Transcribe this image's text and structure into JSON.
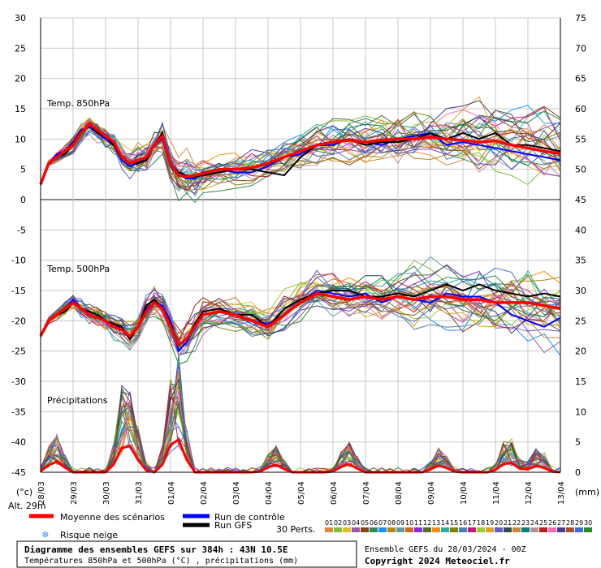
{
  "colors": {
    "mean": "#ff0000",
    "control": "#0000ff",
    "gfs": "#000000",
    "grid": "#c8c8c8",
    "zero_line": "#888888",
    "snow": "#3399ff"
  },
  "labels": {
    "temp850": "Temp. 850hPa",
    "temp500": "Temp. 500hPa",
    "precip": "Précipitations",
    "unit_c": "(°c)",
    "unit_mm": "(mm)",
    "alt": "Alt. 29m"
  },
  "legend": {
    "mean": "Moyenne des scénarios",
    "control": "Run de contrôle",
    "gfs": "Run GFS",
    "snow": "Risque neige",
    "perts": "30 Perts.",
    "pert_numbers": [
      "01",
      "02",
      "03",
      "04",
      "05",
      "06",
      "07",
      "08",
      "09",
      "10",
      "11",
      "12",
      "13",
      "14",
      "15",
      "16",
      "17",
      "18",
      "19",
      "20",
      "21",
      "22",
      "23",
      "24",
      "25",
      "26",
      "27",
      "28",
      "29",
      "30"
    ],
    "pert_colors": [
      "#d98c3c",
      "#7fbf3f",
      "#e0c020",
      "#9b59b6",
      "#8b4513",
      "#2e8b57",
      "#1e90ff",
      "#b8860b",
      "#5f9ea0",
      "#d2691e",
      "#8a2be2",
      "#556b2f",
      "#ff8c00",
      "#20b2aa",
      "#808000",
      "#4682b4",
      "#c71585",
      "#9acd32",
      "#daa520",
      "#6a5acd",
      "#2f4f4f",
      "#cd853f",
      "#008080",
      "#bc8f8f",
      "#b22222",
      "#ff69b4",
      "#483d8b",
      "#a0522d",
      "#4169e1",
      "#228b22"
    ]
  },
  "footer": {
    "title": "Diagramme des ensembles GEFS sur 384h : 43N 10.5E",
    "subtitle": "Températures 850hPa et 500hPa (°C) , précipitations (mm)",
    "run": "Ensemble GEFS du 28/03/2024 - 00Z",
    "copyright": "Copyright 2024 Meteociel.fr"
  },
  "chart_data": {
    "type": "line",
    "x_dates": [
      "28/03",
      "29/03",
      "30/03",
      "31/03",
      "01/04",
      "02/04",
      "03/04",
      "04/04",
      "05/04",
      "06/04",
      "07/04",
      "08/04",
      "09/04",
      "10/04",
      "11/04",
      "12/04",
      "13/04"
    ],
    "x_range_days": [
      0,
      16
    ],
    "y_left_ticks": [
      30,
      25,
      20,
      15,
      10,
      5,
      0,
      -5,
      -10,
      -15,
      -20,
      -25,
      -30,
      -35,
      -40,
      -45
    ],
    "y_right_ticks": [
      75,
      70,
      65,
      60,
      55,
      50,
      45,
      40,
      35,
      30,
      25,
      20,
      15,
      10,
      5,
      0
    ],
    "y_left_range": [
      -45,
      30
    ],
    "temp850": {
      "mean_x": [
        0,
        0.25,
        0.5,
        0.75,
        1,
        1.25,
        1.5,
        1.75,
        2,
        2.25,
        2.5,
        2.75,
        3,
        3.25,
        3.5,
        3.75,
        4,
        4.25,
        4.5,
        4.75,
        5,
        5.5,
        6,
        6.5,
        7,
        7.5,
        8,
        8.5,
        9,
        9.5,
        10,
        10.5,
        11,
        11.5,
        12,
        12.5,
        13,
        13.5,
        14,
        14.5,
        15,
        15.5,
        16
      ],
      "mean_y": [
        2.5,
        6,
        7,
        8,
        9,
        11,
        12.5,
        11.5,
        10.5,
        9.5,
        7,
        6,
        6.5,
        7,
        9,
        10.5,
        6,
        4,
        3.8,
        4,
        4.3,
        5,
        5,
        5.3,
        6,
        7,
        8,
        9,
        9.5,
        9.8,
        9.5,
        9.8,
        10,
        10,
        10.3,
        10,
        9.8,
        9.5,
        9.7,
        9,
        8.5,
        8,
        7.6
      ],
      "control_y": [
        2.5,
        6,
        7.5,
        8,
        9.5,
        11.5,
        12,
        11,
        10,
        9,
        6.5,
        5.5,
        6,
        7,
        9,
        10,
        5.5,
        4,
        3.5,
        3.5,
        4.5,
        5,
        4.5,
        4.5,
        5.5,
        7,
        7.5,
        9,
        9,
        10,
        9.5,
        9,
        10,
        10.5,
        11,
        9,
        9.5,
        9,
        8.5,
        8,
        7.5,
        7,
        6.5
      ],
      "gfs_y": [
        2.5,
        6,
        7,
        7.5,
        9,
        11,
        12.5,
        11,
        10.5,
        9,
        7,
        6,
        6,
        6.5,
        9,
        11,
        6,
        4.5,
        4,
        3.8,
        4,
        4.5,
        5,
        5,
        4.5,
        4,
        7,
        9,
        9.5,
        10,
        9,
        9.5,
        9.5,
        10,
        11,
        10,
        11,
        10,
        11,
        9,
        9,
        8.5,
        8
      ],
      "ensemble_spread": [
        0,
        2,
        3,
        4,
        5,
        6,
        7,
        7,
        7,
        7,
        7,
        7,
        7,
        7,
        7,
        7,
        8,
        9
      ]
    },
    "temp500": {
      "mean_x": [
        0,
        0.25,
        0.5,
        0.75,
        1,
        1.25,
        1.5,
        1.75,
        2,
        2.25,
        2.5,
        2.75,
        3,
        3.25,
        3.5,
        3.75,
        4,
        4.25,
        4.5,
        4.75,
        5,
        5.5,
        6,
        6.5,
        7,
        7.5,
        8,
        8.5,
        9,
        9.5,
        10,
        10.5,
        11,
        11.5,
        12,
        12.5,
        13,
        13.5,
        14,
        14.5,
        15,
        15.5,
        16
      ],
      "mean_y": [
        -22.5,
        -20,
        -19,
        -18,
        -17,
        -18,
        -19,
        -19.5,
        -20,
        -21,
        -21.5,
        -22.5,
        -21,
        -18.5,
        -17,
        -18,
        -21,
        -24,
        -23,
        -21,
        -19,
        -18.5,
        -19,
        -20,
        -21,
        -19,
        -17,
        -15.5,
        -16,
        -16.5,
        -16,
        -16.5,
        -16,
        -16.5,
        -16,
        -16,
        -16.5,
        -16.5,
        -17,
        -17,
        -17,
        -17.5,
        -18
      ],
      "control_y": [
        -22.5,
        -20,
        -19,
        -18,
        -16.5,
        -18,
        -19,
        -19.5,
        -20,
        -21,
        -21,
        -23,
        -21,
        -18,
        -17,
        -17.5,
        -20,
        -25,
        -23.5,
        -21,
        -19,
        -18.5,
        -19,
        -20,
        -20.5,
        -19,
        -17,
        -15,
        -15.5,
        -16,
        -15.5,
        -17,
        -16,
        -16.5,
        -17,
        -15.5,
        -16,
        -16,
        -17,
        -19,
        -20,
        -21,
        -19.5
      ],
      "gfs_y": [
        -22.5,
        -20,
        -19,
        -18.5,
        -17,
        -18,
        -18.5,
        -19,
        -20,
        -20.5,
        -21,
        -23,
        -21,
        -17.5,
        -16.5,
        -18,
        -20.5,
        -24,
        -23,
        -20.5,
        -18.5,
        -18,
        -19,
        -19,
        -21,
        -18,
        -16.5,
        -15.5,
        -15,
        -15,
        -16,
        -16,
        -15.5,
        -16,
        -15,
        -14,
        -15,
        -14,
        -15,
        -15.5,
        -16,
        -15.5,
        -16
      ]
    },
    "precip": {
      "peaks_day": [
        0.45,
        2.6,
        2.85,
        4.1,
        4.2,
        7.2,
        9.45,
        12.3,
        14.4,
        15.3
      ],
      "peaks_mm": [
        6.5,
        14.5,
        5.5,
        10,
        12,
        4.5,
        5,
        4,
        6.5,
        4
      ]
    }
  }
}
